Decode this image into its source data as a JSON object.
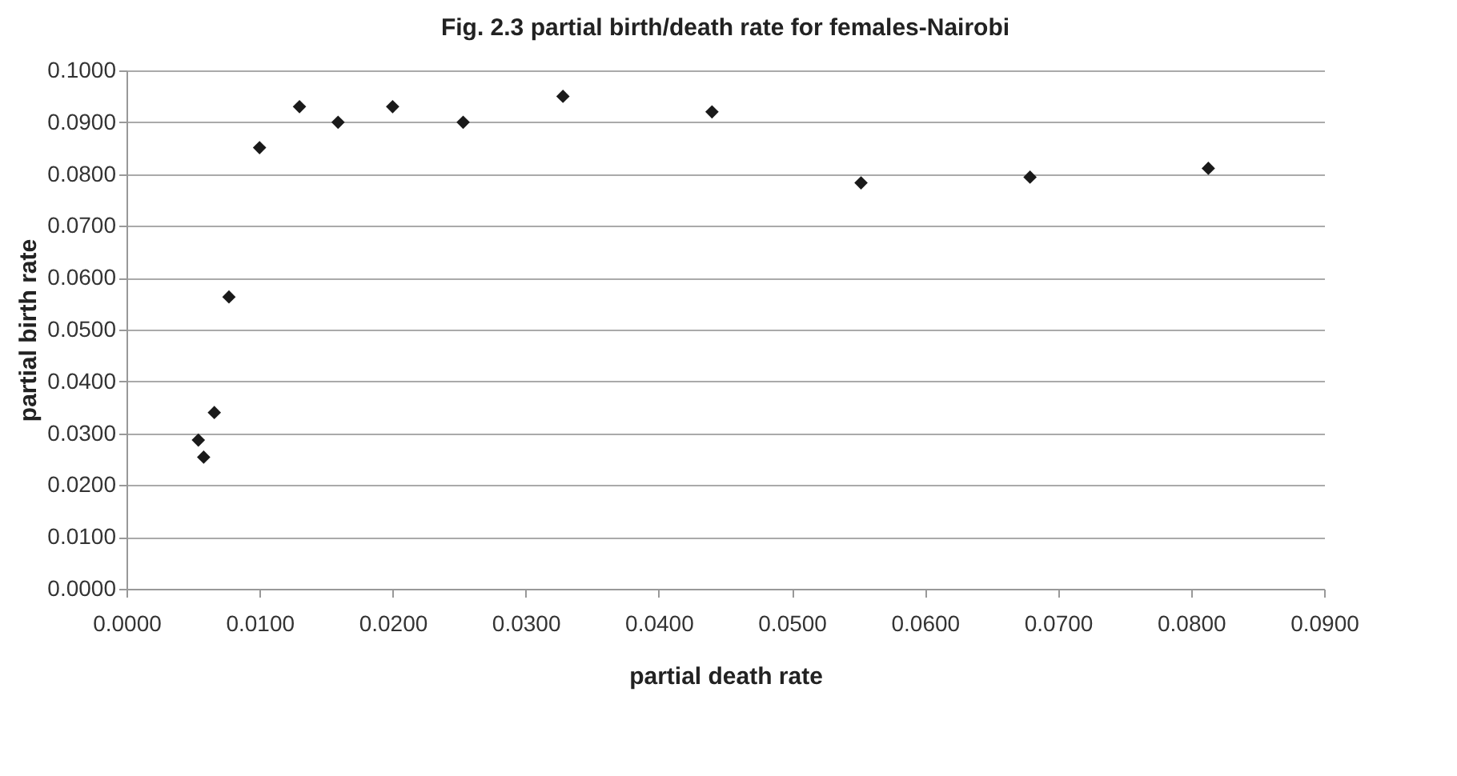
{
  "chart_data": {
    "type": "scatter",
    "title": "Fig. 2.3 partial birth/death rate for females-Nairobi",
    "xlabel": "partial death rate",
    "ylabel": "partial birth rate",
    "x": [
      0.0054,
      0.0058,
      0.0066,
      0.0077,
      0.01,
      0.013,
      0.0159,
      0.02,
      0.0253,
      0.0328,
      0.044,
      0.0552,
      0.0679,
      0.0813
    ],
    "series": [
      {
        "color": "#1a1a1a",
        "values": [
          0.0287,
          0.0254,
          0.034,
          0.0563,
          0.0851,
          0.093,
          0.09,
          0.093,
          0.09,
          0.095,
          0.092,
          0.0783,
          0.0794,
          0.0811
        ]
      }
    ],
    "xlim": [
      0,
      0.09
    ],
    "ylim": [
      0,
      0.1
    ],
    "xticks": [
      {
        "value": 0,
        "label": "0.0000"
      },
      {
        "value": 0.01,
        "label": "0.0100"
      },
      {
        "value": 0.02,
        "label": "0.0200"
      },
      {
        "value": 0.03,
        "label": "0.0300"
      },
      {
        "value": 0.04,
        "label": "0.0400"
      },
      {
        "value": 0.05,
        "label": "0.0500"
      },
      {
        "value": 0.06,
        "label": "0.0600"
      },
      {
        "value": 0.07,
        "label": "0.0700"
      },
      {
        "value": 0.08,
        "label": "0.0800"
      },
      {
        "value": 0.09,
        "label": "0.0900"
      }
    ],
    "yticks": [
      {
        "value": 0,
        "label": "0.0000"
      },
      {
        "value": 0.01,
        "label": "0.0100"
      },
      {
        "value": 0.02,
        "label": "0.0200"
      },
      {
        "value": 0.03,
        "label": "0.0300"
      },
      {
        "value": 0.04,
        "label": "0.0400"
      },
      {
        "value": 0.05,
        "label": "0.0500"
      },
      {
        "value": 0.06,
        "label": "0.0600"
      },
      {
        "value": 0.07,
        "label": "0.0700"
      },
      {
        "value": 0.08,
        "label": "0.0800"
      },
      {
        "value": 0.09,
        "label": "0.0900"
      },
      {
        "value": 0.1,
        "label": "0.1000"
      }
    ],
    "grid": "y",
    "marker": "diamond"
  }
}
